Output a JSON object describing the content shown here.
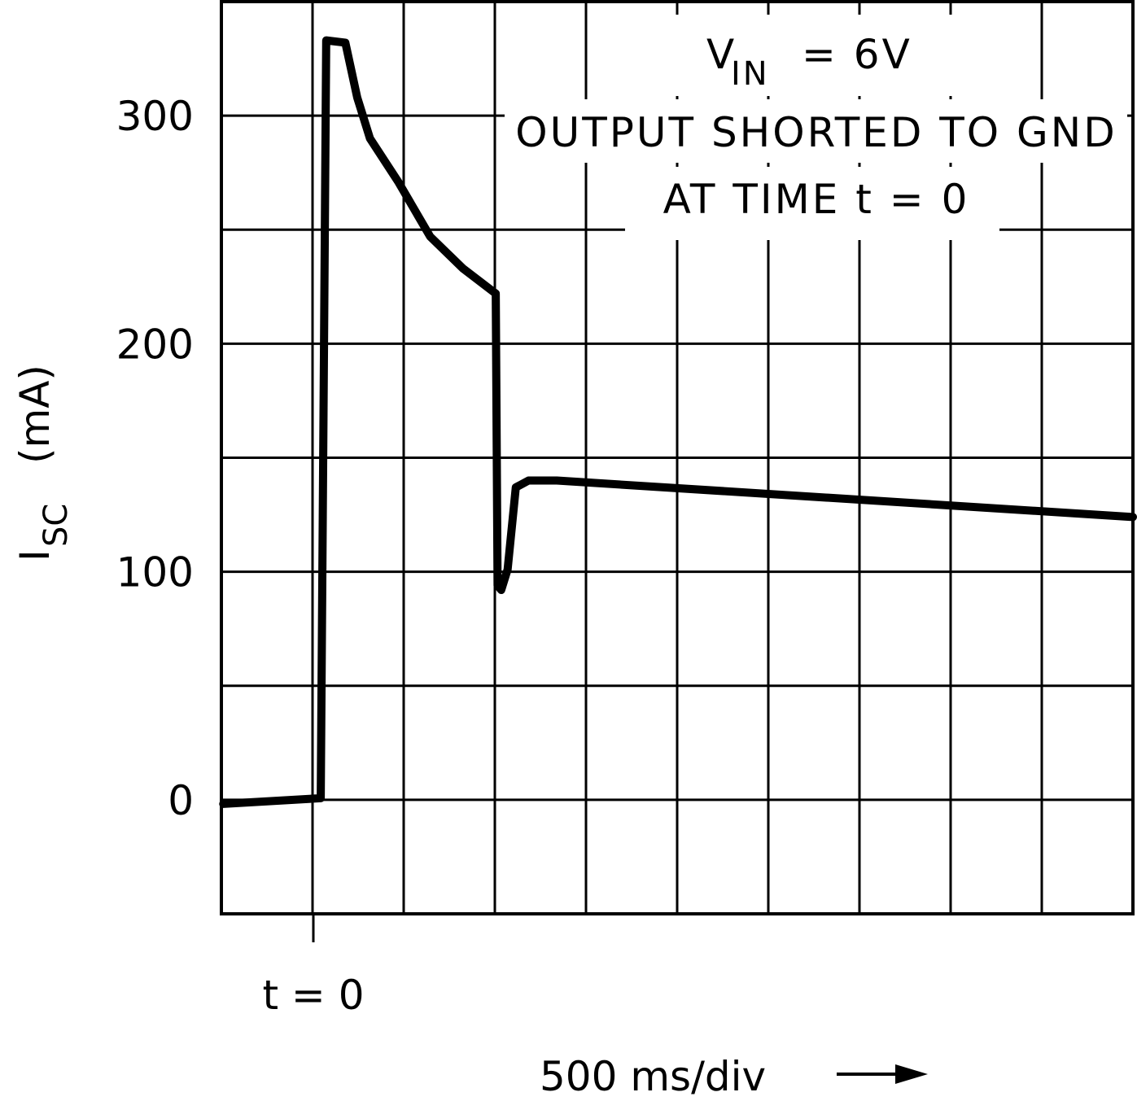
{
  "chart_data": {
    "type": "line",
    "title": "",
    "xlabel": "500 ms/div",
    "xlabel_arrow": "right-arrow",
    "ylabel_main": "I",
    "ylabel_sub": "SC",
    "ylabel_unit": "(mA)",
    "x_unit": "divisions (500 ms each) from t = 0",
    "xlim": [
      -1,
      9
    ],
    "ylim": [
      -50,
      350
    ],
    "grid": true,
    "yticks": [
      0,
      100,
      200,
      300
    ],
    "ytick_labels": [
      "0",
      "100",
      "200",
      "300"
    ],
    "x_marker_label": "t = 0",
    "annotation": {
      "line1_main": "V",
      "line1_sub": "IN",
      "line1_rest": "=  6V",
      "line2": "OUTPUT SHORTED TO GND",
      "line3": "AT TIME t = 0"
    },
    "series": [
      {
        "name": "I_SC",
        "x": [
          -0.98,
          0.09,
          0.15,
          0.36,
          0.49,
          0.63,
          0.94,
          1.29,
          1.65,
          2.01,
          2.03,
          2.07,
          2.14,
          2.23,
          2.37,
          2.68,
          9.0
        ],
        "y": [
          -1.8,
          0.7,
          333,
          332,
          308,
          290,
          271,
          247,
          233,
          222,
          94,
          92,
          101,
          137,
          140,
          140,
          124
        ]
      }
    ]
  }
}
